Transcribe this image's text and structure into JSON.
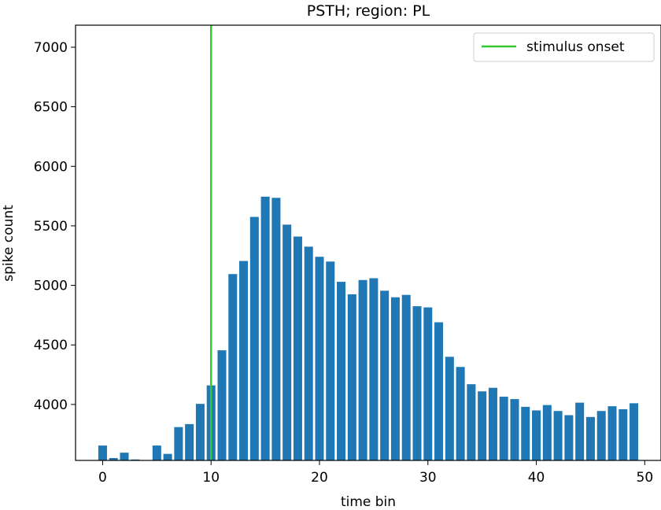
{
  "chart_data": {
    "type": "bar",
    "title": "PSTH; region: PL",
    "xlabel": "time bin",
    "ylabel": "spike count",
    "xlim": [
      -2.5,
      51.5
    ],
    "ylim": [
      3530,
      7185
    ],
    "xticks": [
      0,
      10,
      20,
      30,
      40,
      50
    ],
    "yticks": [
      4000,
      4500,
      5000,
      5500,
      6000,
      6500,
      7000
    ],
    "grid": false,
    "legend_position": "top-right",
    "bar_color": "#1f77b4",
    "x": [
      0,
      1,
      2,
      3,
      4,
      5,
      6,
      7,
      8,
      9,
      10,
      11,
      12,
      13,
      14,
      15,
      16,
      17,
      18,
      19,
      20,
      21,
      22,
      23,
      24,
      25,
      26,
      27,
      28,
      29,
      30,
      31,
      32,
      33,
      34,
      35,
      36,
      37,
      38,
      39,
      40,
      41,
      42,
      43,
      44,
      45,
      46,
      47,
      48,
      49
    ],
    "values": [
      3655,
      3550,
      3595,
      3538,
      3530,
      3655,
      3585,
      3810,
      3835,
      4005,
      4160,
      4455,
      5095,
      5205,
      5575,
      5745,
      5735,
      5510,
      5410,
      5325,
      5240,
      5200,
      5030,
      4925,
      5045,
      5060,
      4955,
      4900,
      4920,
      4825,
      4815,
      4690,
      4400,
      4315,
      4170,
      4110,
      4140,
      4065,
      4045,
      3980,
      3950,
      3995,
      3945,
      3910,
      4015,
      3895,
      3945,
      3985,
      3960,
      4010
    ],
    "reference_line": {
      "name": "stimulus onset",
      "x": 10,
      "color": "#32c832"
    }
  }
}
